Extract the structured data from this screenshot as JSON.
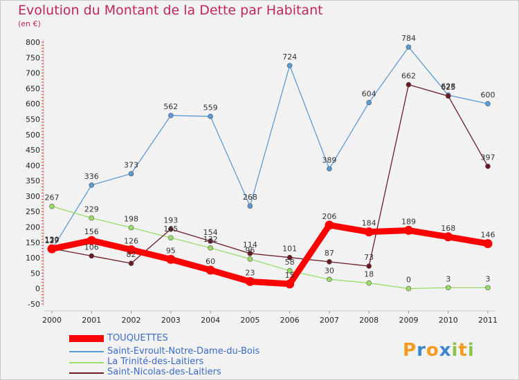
{
  "title": "Evolution du Montant de la Dette par Habitant",
  "unit": "(en €)",
  "brand": {
    "letters": [
      "P",
      "r",
      "o",
      "x",
      "i",
      "t",
      "i"
    ],
    "colors": [
      "#f39c1f",
      "#3b86d0",
      "#f39c1f",
      "#3b86d0",
      "#8bc34a",
      "#f39c1f",
      "#8bc34a"
    ]
  },
  "chart_data": {
    "type": "line",
    "title": "Evolution du Montant de la Dette par Habitant",
    "ylabel": "(en €)",
    "xlabel": "",
    "x": [
      "2000",
      "2001",
      "2002",
      "2003",
      "2004",
      "2005",
      "2006",
      "2007",
      "2008",
      "2009",
      "2010",
      "2011"
    ],
    "yticks": [
      "-50",
      "0",
      "50",
      "100",
      "150",
      "200",
      "250",
      "300",
      "350",
      "400",
      "450",
      "500",
      "550",
      "600",
      "650",
      "700",
      "750",
      "800"
    ],
    "ylim": [
      -50,
      800
    ],
    "grid": false,
    "legend_placement": "bottom-left",
    "series": [
      {
        "name": "TOUQUETTES",
        "color": "#ff0000",
        "values": [
          129,
          156,
          126,
          95,
          60,
          23,
          15,
          206,
          184,
          189,
          168,
          146
        ],
        "labels": [
          "129",
          "156",
          "126",
          "95",
          "60",
          "23",
          "15",
          "206",
          "184",
          "189",
          "168",
          "146"
        ]
      },
      {
        "name": "Saint-Evroult-Notre-Dame-du-Bois",
        "color": "#5b9bd5",
        "values": [
          127,
          336,
          373,
          562,
          559,
          268,
          724,
          389,
          604,
          784,
          628,
          600
        ],
        "labels": [
          "127",
          "336",
          "373",
          "562",
          "559",
          "268",
          "724",
          "389",
          "604",
          "784",
          "628",
          "600"
        ]
      },
      {
        "name": "La Trinité-des-Laitiers",
        "color": "#99dd66",
        "values": [
          267,
          229,
          198,
          165,
          132,
          96,
          58,
          30,
          18,
          0,
          3,
          3
        ],
        "labels": [
          "267",
          "229",
          "198",
          "165",
          "132",
          "96",
          "58",
          "30",
          "18",
          "0",
          "3",
          "3"
        ]
      },
      {
        "name": "Saint-Nicolas-des-Laitiers",
        "color": "#6b1a24",
        "values": [
          130,
          106,
          82,
          193,
          154,
          114,
          101,
          87,
          73,
          662,
          625,
          397
        ],
        "labels": [
          "130",
          "106",
          "82",
          "193",
          "154",
          "114",
          "101",
          "87",
          "73",
          "662",
          "625",
          "397"
        ]
      }
    ]
  }
}
